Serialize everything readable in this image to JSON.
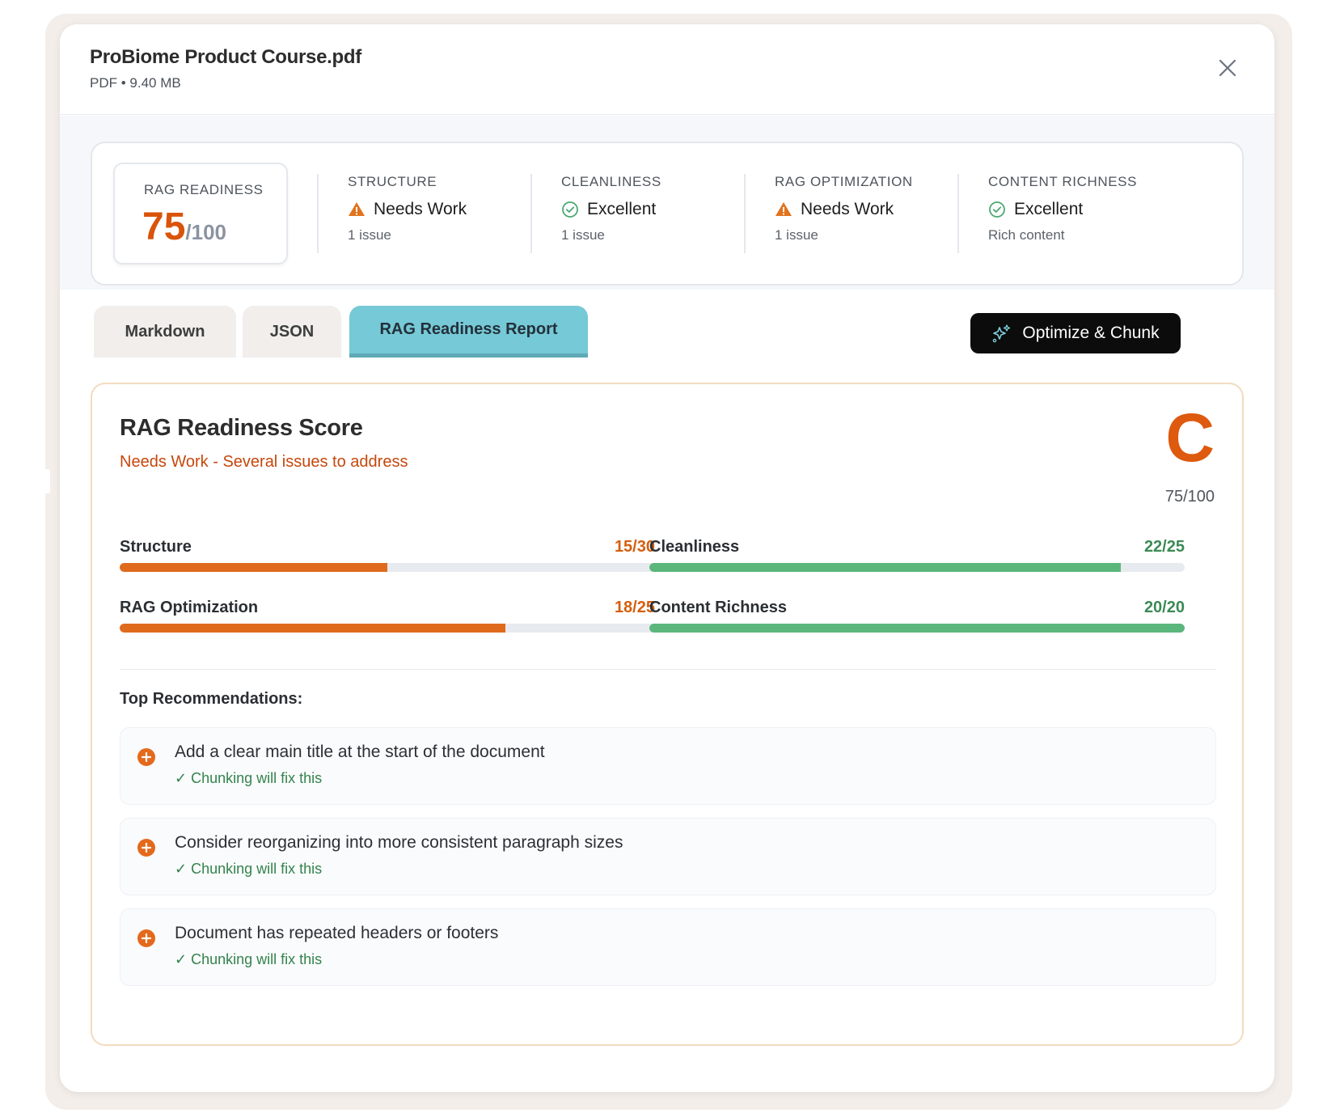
{
  "file": {
    "name": "ProBiome Product Course.pdf",
    "meta": "PDF • 9.40 MB"
  },
  "summary": {
    "score_label": "RAG READINESS",
    "score_value": "75",
    "score_max": "/100",
    "metrics": [
      {
        "label": "STRUCTURE",
        "status": "Needs Work",
        "status_icon": "warning-icon",
        "sub": "1 issue"
      },
      {
        "label": "CLEANLINESS",
        "status": "Excellent",
        "status_icon": "check-circle-icon",
        "sub": "1 issue"
      },
      {
        "label": "RAG OPTIMIZATION",
        "status": "Needs Work",
        "status_icon": "warning-icon",
        "sub": "1 issue"
      },
      {
        "label": "CONTENT RICHNESS",
        "status": "Excellent",
        "status_icon": "check-circle-icon",
        "sub": "Rich content"
      }
    ]
  },
  "tabs": [
    {
      "label": "Markdown",
      "active": false
    },
    {
      "label": "JSON",
      "active": false
    },
    {
      "label": "RAG Readiness Report",
      "active": true
    }
  ],
  "actions": {
    "optimize_label": "Optimize & Chunk",
    "optimize_icon": "sparkle-icon"
  },
  "report": {
    "title": "RAG Readiness Score",
    "subtitle": "Needs Work - Several issues to address",
    "grade": "C",
    "grade_score": "75/100",
    "categories": [
      {
        "name": "Structure",
        "value": "15/30",
        "score": 15,
        "max": 30,
        "tone": "orange"
      },
      {
        "name": "Cleanliness",
        "value": "22/25",
        "score": 22,
        "max": 25,
        "tone": "green"
      },
      {
        "name": "RAG Optimization",
        "value": "18/25",
        "score": 18,
        "max": 25,
        "tone": "orange"
      },
      {
        "name": "Content Richness",
        "value": "20/20",
        "score": 20,
        "max": 20,
        "tone": "green"
      }
    ],
    "recommendations_title": "Top Recommendations:",
    "recommendations": [
      {
        "text": "Add a clear main title at the start of the document",
        "note": "✓ Chunking will fix this"
      },
      {
        "text": "Consider reorganizing into more consistent paragraph sizes",
        "note": "✓ Chunking will fix this"
      },
      {
        "text": "Document has repeated headers or footers",
        "note": "✓ Chunking will fix this"
      }
    ]
  },
  "colors": {
    "accent_orange": "#dd5a0e",
    "accent_green": "#5ab67b",
    "active_tab": "#76c9d6"
  }
}
